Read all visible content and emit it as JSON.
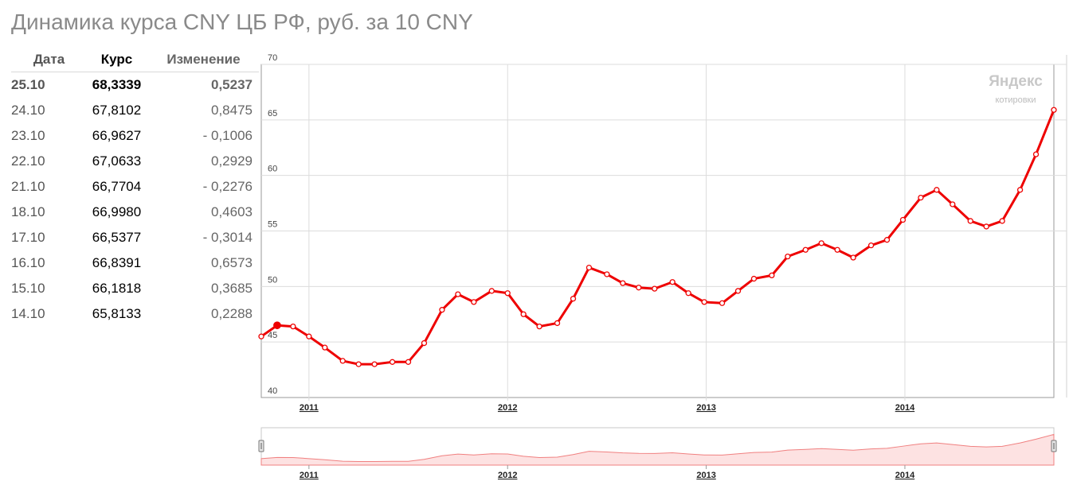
{
  "title": "Динамика курса CNY ЦБ РФ, руб. за 10 CNY",
  "table": {
    "headers": [
      "Дата",
      "Курс",
      "Изменение"
    ],
    "rows": [
      {
        "date": "25.10",
        "rate": "68,3339",
        "change": "0,5237"
      },
      {
        "date": "24.10",
        "rate": "67,8102",
        "change": "0,8475"
      },
      {
        "date": "23.10",
        "rate": "66,9627",
        "change": "- 0,1006"
      },
      {
        "date": "22.10",
        "rate": "67,0633",
        "change": "0,2929"
      },
      {
        "date": "21.10",
        "rate": "66,7704",
        "change": "- 0,2276"
      },
      {
        "date": "18.10",
        "rate": "66,9980",
        "change": "0,4603"
      },
      {
        "date": "17.10",
        "rate": "66,5377",
        "change": "- 0,3014"
      },
      {
        "date": "16.10",
        "rate": "66,8391",
        "change": "0,6573"
      },
      {
        "date": "15.10",
        "rate": "66,1818",
        "change": "0,3685"
      },
      {
        "date": "14.10",
        "rate": "65,8133",
        "change": "0,2288"
      }
    ]
  },
  "watermark": {
    "brand": "Яндекс",
    "sub": "котировки"
  },
  "chart_data": {
    "type": "line",
    "title": "",
    "xlabel": "",
    "ylabel": "",
    "ylim": [
      40,
      70
    ],
    "yticks": [
      40,
      45,
      50,
      55,
      60,
      65,
      70
    ],
    "xlim": [
      2010.76,
      2014.75
    ],
    "xticks": [
      {
        "label": "2011",
        "x": 2011.0
      },
      {
        "label": "2012",
        "x": 2012.0
      },
      {
        "label": "2013",
        "x": 2013.0
      },
      {
        "label": "2014",
        "x": 2014.0
      }
    ],
    "grid": true,
    "color": "#ee0000",
    "series": [
      {
        "name": "",
        "x": [
          2010.76,
          2010.84,
          2010.92,
          2011.0,
          2011.08,
          2011.17,
          2011.25,
          2011.33,
          2011.42,
          2011.5,
          2011.58,
          2011.67,
          2011.75,
          2011.83,
          2011.92,
          2012.0,
          2012.08,
          2012.16,
          2012.25,
          2012.33,
          2012.41,
          2012.5,
          2012.58,
          2012.66,
          2012.74,
          2012.83,
          2012.91,
          2012.99,
          2013.08,
          2013.16,
          2013.24,
          2013.33,
          2013.41,
          2013.5,
          2013.58,
          2013.66,
          2013.74,
          2013.83,
          2013.91,
          2013.99,
          2014.08,
          2014.16,
          2014.24,
          2014.33,
          2014.41,
          2014.49,
          2014.58,
          2014.66,
          2014.75
        ],
        "y": [
          45.5,
          46.5,
          46.4,
          45.5,
          44.5,
          43.3,
          43.0,
          43.0,
          43.2,
          43.2,
          44.9,
          47.9,
          49.3,
          48.6,
          49.6,
          49.4,
          47.5,
          46.4,
          46.7,
          48.9,
          51.7,
          51.1,
          50.3,
          49.9,
          49.8,
          50.4,
          49.4,
          48.6,
          48.5,
          49.6,
          50.7,
          51.0,
          52.7,
          53.3,
          53.9,
          53.3,
          52.6,
          53.7,
          54.2,
          56.0,
          58.0,
          58.7,
          57.4,
          55.9,
          55.4,
          55.9,
          58.7,
          61.9,
          65.9
        ]
      }
    ]
  }
}
